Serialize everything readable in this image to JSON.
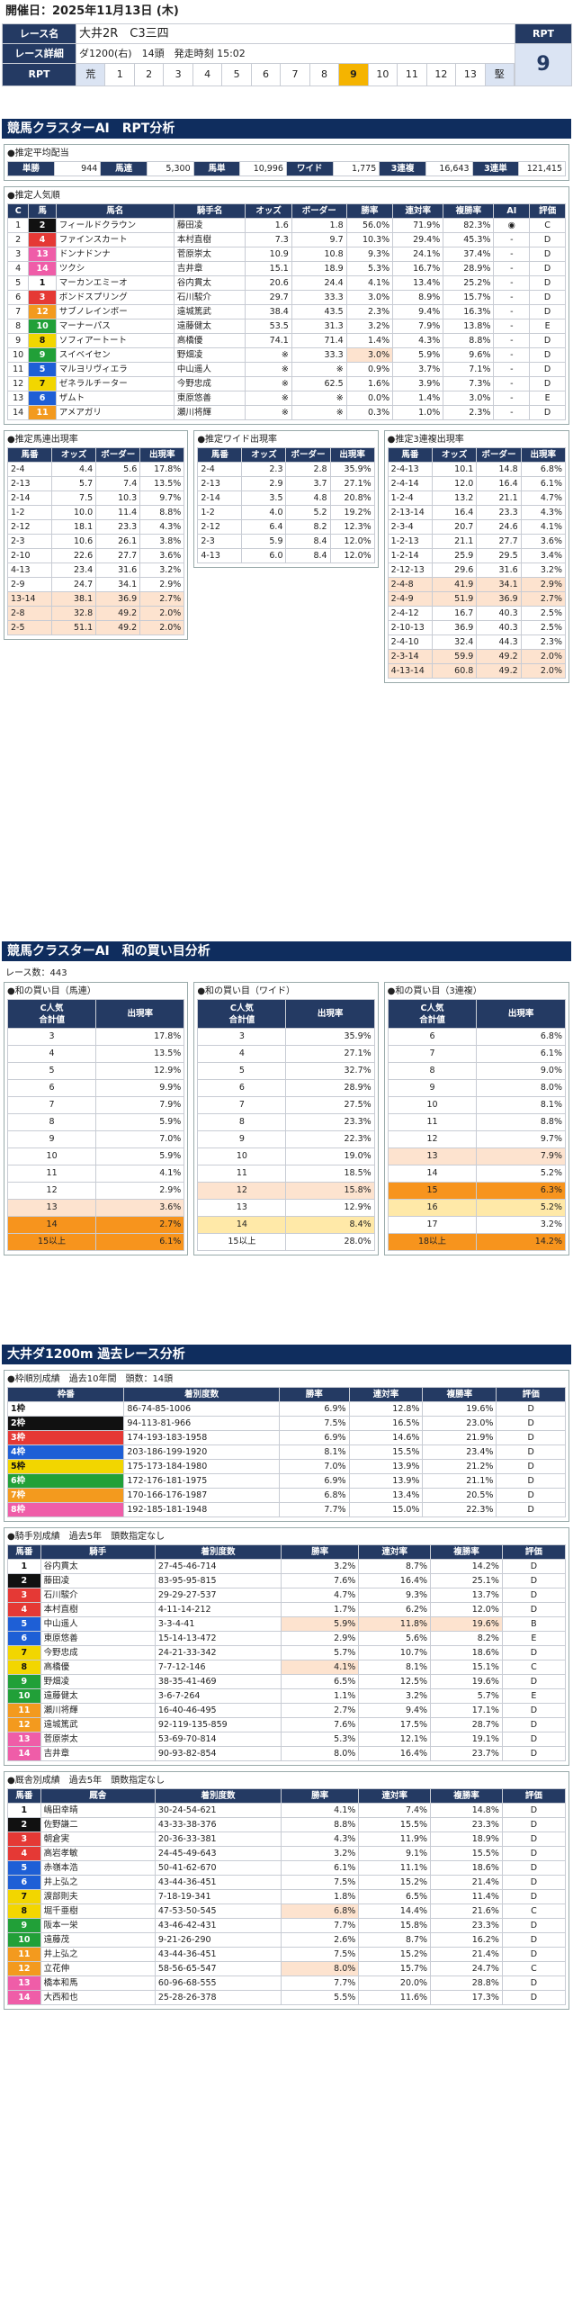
{
  "header": {
    "date_label": "開催日：",
    "date": "2025年11月13日 (木)",
    "race_name_label": "レース名",
    "race_name": "大井2R　C3三四",
    "rpt_label": "RPT",
    "rpt_value": "9",
    "detail_label": "レース詳細",
    "detail": "ダ1200(右)　14頭　発走時刻 15:02",
    "rpt_row_label": "RPT",
    "rpt_row_left": "荒",
    "rpt_row_right": "堅",
    "rpt_scale": [
      "1",
      "2",
      "3",
      "4",
      "5",
      "6",
      "7",
      "8",
      "9",
      "10",
      "11",
      "12",
      "13"
    ],
    "rpt_selected": "9"
  },
  "s1": {
    "title": "競馬クラスターAI　RPT分析",
    "payout": {
      "title": "●推定平均配当",
      "cells": [
        "単勝",
        "944",
        "馬連",
        "5,300",
        "馬単",
        "10,996",
        "ワイド",
        "1,775",
        "3連複",
        "16,643",
        "3連単",
        "121,415"
      ]
    },
    "pop": {
      "title": "●推定人気順",
      "headers": [
        "C",
        "馬",
        "馬名",
        "騎手名",
        "オッズ",
        "ボーダー",
        "勝率",
        "連対率",
        "複勝率",
        "AI",
        "評価"
      ],
      "rows": [
        [
          "1",
          "2",
          "フィールドクラウン",
          "藤田凌",
          "1.6",
          "1.8",
          "56.0%",
          "71.9%",
          "82.3%",
          "◉",
          "C"
        ],
        [
          "2",
          "4",
          "ファインスカート",
          "本村直樹",
          "7.3",
          "9.7",
          "10.3%",
          "29.4%",
          "45.3%",
          "-",
          "D"
        ],
        [
          "3",
          "13",
          "ドンナドンナ",
          "菅原崇太",
          "10.9",
          "10.8",
          "9.3%",
          "24.1%",
          "37.4%",
          "-",
          "D"
        ],
        [
          "4",
          "14",
          "ツクシ",
          "吉井章",
          "15.1",
          "18.9",
          "5.3%",
          "16.7%",
          "28.9%",
          "-",
          "D"
        ],
        [
          "5",
          "1",
          "マーカンエミーオ",
          "谷内貫太",
          "20.6",
          "24.4",
          "4.1%",
          "13.4%",
          "25.2%",
          "-",
          "D"
        ],
        [
          "6",
          "3",
          "ボンドスプリング",
          "石川駿介",
          "29.7",
          "33.3",
          "3.0%",
          "8.9%",
          "15.7%",
          "-",
          "D"
        ],
        [
          "7",
          "12",
          "サブノレインボー",
          "遠城篤武",
          "38.4",
          "43.5",
          "2.3%",
          "9.4%",
          "16.3%",
          "-",
          "D"
        ],
        [
          "8",
          "10",
          "マーナーパス",
          "遠藤健太",
          "53.5",
          "31.3",
          "3.2%",
          "7.9%",
          "13.8%",
          "-",
          "E"
        ],
        [
          "9",
          "8",
          "ソフィアートート",
          "高橋優",
          "74.1",
          "71.4",
          "1.4%",
          "4.3%",
          "8.8%",
          "-",
          "D"
        ],
        [
          "10",
          "9",
          "スイベイセン",
          "野畑凌",
          "※",
          "33.3",
          "3.0%",
          "5.9%",
          "9.6%",
          "-",
          "D"
        ],
        [
          "11",
          "5",
          "マルヨリヴィエラ",
          "中山遥人",
          "※",
          "※",
          "0.9%",
          "3.7%",
          "7.1%",
          "-",
          "D"
        ],
        [
          "12",
          "7",
          "ゼネラルチーター",
          "今野忠成",
          "※",
          "62.5",
          "1.6%",
          "3.9%",
          "7.3%",
          "-",
          "D"
        ],
        [
          "13",
          "6",
          "ザムト",
          "東原悠善",
          "※",
          "※",
          "0.0%",
          "1.4%",
          "3.0%",
          "-",
          "E"
        ],
        [
          "14",
          "11",
          "アメアガリ",
          "瀬川将輝",
          "※",
          "※",
          "0.3%",
          "1.0%",
          "2.3%",
          "-",
          "D"
        ]
      ]
    },
    "umaren": {
      "title": "●推定馬連出現率",
      "headers": [
        "馬番",
        "オッズ",
        "ボーダー",
        "出現率"
      ],
      "rows": [
        [
          "2-4",
          "4.4",
          "5.6",
          "17.8%"
        ],
        [
          "2-13",
          "5.7",
          "7.4",
          "13.5%"
        ],
        [
          "2-14",
          "7.5",
          "10.3",
          "9.7%"
        ],
        [
          "1-2",
          "10.0",
          "11.4",
          "8.8%"
        ],
        [
          "2-12",
          "18.1",
          "23.3",
          "4.3%"
        ],
        [
          "2-3",
          "10.6",
          "26.1",
          "3.8%"
        ],
        [
          "2-10",
          "22.6",
          "27.7",
          "3.6%"
        ],
        [
          "4-13",
          "23.4",
          "31.6",
          "3.2%"
        ],
        [
          "2-9",
          "24.7",
          "34.1",
          "2.9%"
        ],
        [
          "13-14",
          "38.1",
          "36.9",
          "2.7%"
        ],
        [
          "2-8",
          "32.8",
          "49.2",
          "2.0%"
        ],
        [
          "2-5",
          "51.1",
          "49.2",
          "2.0%"
        ]
      ]
    },
    "wide": {
      "title": "●推定ワイド出現率",
      "headers": [
        "馬番",
        "オッズ",
        "ボーダー",
        "出現率"
      ],
      "rows": [
        [
          "2-4",
          "2.3",
          "2.8",
          "35.9%"
        ],
        [
          "2-13",
          "2.9",
          "3.7",
          "27.1%"
        ],
        [
          "2-14",
          "3.5",
          "4.8",
          "20.8%"
        ],
        [
          "1-2",
          "4.0",
          "5.2",
          "19.2%"
        ],
        [
          "2-12",
          "6.4",
          "8.2",
          "12.3%"
        ],
        [
          "2-3",
          "5.9",
          "8.4",
          "12.0%"
        ],
        [
          "4-13",
          "6.0",
          "8.4",
          "12.0%"
        ]
      ]
    },
    "trio": {
      "title": "●推定3連複出現率",
      "headers": [
        "馬番",
        "オッズ",
        "ボーダー",
        "出現率"
      ],
      "rows": [
        [
          "2-4-13",
          "10.1",
          "14.8",
          "6.8%"
        ],
        [
          "2-4-14",
          "12.0",
          "16.4",
          "6.1%"
        ],
        [
          "1-2-4",
          "13.2",
          "21.1",
          "4.7%"
        ],
        [
          "2-13-14",
          "16.4",
          "23.3",
          "4.3%"
        ],
        [
          "2-3-4",
          "20.7",
          "24.6",
          "4.1%"
        ],
        [
          "1-2-13",
          "21.1",
          "27.7",
          "3.6%"
        ],
        [
          "1-2-14",
          "25.9",
          "29.5",
          "3.4%"
        ],
        [
          "2-12-13",
          "29.6",
          "31.6",
          "3.2%"
        ],
        [
          "2-4-8",
          "41.9",
          "34.1",
          "2.9%"
        ],
        [
          "2-4-9",
          "51.9",
          "36.9",
          "2.7%"
        ],
        [
          "2-4-12",
          "16.7",
          "40.3",
          "2.5%"
        ],
        [
          "2-10-13",
          "36.9",
          "40.3",
          "2.5%"
        ],
        [
          "2-4-10",
          "32.4",
          "44.3",
          "2.3%"
        ],
        [
          "2-3-14",
          "59.9",
          "49.2",
          "2.0%"
        ],
        [
          "4-13-14",
          "60.8",
          "49.2",
          "2.0%"
        ]
      ]
    }
  },
  "s2": {
    "title": "競馬クラスターAI　和の買い目分析",
    "count": "レース数：443",
    "t1": {
      "title": "●和の買い目（馬連）",
      "h1": "C人気\n合計値",
      "h2": "出現率",
      "rows": [
        [
          "3",
          "17.8%"
        ],
        [
          "4",
          "13.5%"
        ],
        [
          "5",
          "12.9%"
        ],
        [
          "6",
          "9.9%"
        ],
        [
          "7",
          "7.9%"
        ],
        [
          "8",
          "5.9%"
        ],
        [
          "9",
          "7.0%"
        ],
        [
          "10",
          "5.9%"
        ],
        [
          "11",
          "4.1%"
        ],
        [
          "12",
          "2.9%"
        ],
        [
          "13",
          "3.6%"
        ],
        [
          "14",
          "2.7%"
        ],
        [
          "15以上",
          "6.1%"
        ]
      ]
    },
    "t2": {
      "title": "●和の買い目（ワイド）",
      "h1": "C人気\n合計値",
      "h2": "出現率",
      "rows": [
        [
          "3",
          "35.9%"
        ],
        [
          "4",
          "27.1%"
        ],
        [
          "5",
          "32.7%"
        ],
        [
          "6",
          "28.9%"
        ],
        [
          "7",
          "27.5%"
        ],
        [
          "8",
          "23.3%"
        ],
        [
          "9",
          "22.3%"
        ],
        [
          "10",
          "19.0%"
        ],
        [
          "11",
          "18.5%"
        ],
        [
          "12",
          "15.8%"
        ],
        [
          "13",
          "12.9%"
        ],
        [
          "14",
          "8.4%"
        ],
        [
          "15以上",
          "28.0%"
        ]
      ]
    },
    "t3": {
      "title": "●和の買い目（3連複）",
      "h1": "C人気\n合計値",
      "h2": "出現率",
      "rows": [
        [
          "6",
          "6.8%"
        ],
        [
          "7",
          "6.1%"
        ],
        [
          "8",
          "9.0%"
        ],
        [
          "9",
          "8.0%"
        ],
        [
          "10",
          "8.1%"
        ],
        [
          "11",
          "8.8%"
        ],
        [
          "12",
          "9.7%"
        ],
        [
          "13",
          "7.9%"
        ],
        [
          "14",
          "5.2%"
        ],
        [
          "15",
          "6.3%"
        ],
        [
          "16",
          "5.2%"
        ],
        [
          "17",
          "3.2%"
        ],
        [
          "18以上",
          "14.2%"
        ]
      ]
    }
  },
  "s3": {
    "title": "大井ダ1200m 過去レース分析",
    "waku": {
      "title": "●枠順別成績　過去10年間　頭数：14頭",
      "headers": [
        "枠番",
        "着別度数",
        "勝率",
        "連対率",
        "複勝率",
        "評価"
      ],
      "rows": [
        [
          "1枠",
          "86-74-85-1006",
          "6.9%",
          "12.8%",
          "19.6%",
          "D"
        ],
        [
          "2枠",
          "94-113-81-966",
          "7.5%",
          "16.5%",
          "23.0%",
          "D"
        ],
        [
          "3枠",
          "174-193-183-1958",
          "6.9%",
          "14.6%",
          "21.9%",
          "D"
        ],
        [
          "4枠",
          "203-186-199-1920",
          "8.1%",
          "15.5%",
          "23.4%",
          "D"
        ],
        [
          "5枠",
          "175-173-184-1980",
          "7.0%",
          "13.9%",
          "21.2%",
          "D"
        ],
        [
          "6枠",
          "172-176-181-1975",
          "6.9%",
          "13.9%",
          "21.1%",
          "D"
        ],
        [
          "7枠",
          "170-166-176-1987",
          "6.8%",
          "13.4%",
          "20.5%",
          "D"
        ],
        [
          "8枠",
          "192-185-181-1948",
          "7.7%",
          "15.0%",
          "22.3%",
          "D"
        ]
      ]
    },
    "jockey": {
      "title": "●騎手別成績　過去5年　頭数指定なし",
      "headers": [
        "馬番",
        "騎手",
        "着別度数",
        "勝率",
        "連対率",
        "複勝率",
        "評価"
      ],
      "rows": [
        [
          "1",
          "谷内貫太",
          "27-45-46-714",
          "3.2%",
          "8.7%",
          "14.2%",
          "D"
        ],
        [
          "2",
          "藤田凌",
          "83-95-95-815",
          "7.6%",
          "16.4%",
          "25.1%",
          "D"
        ],
        [
          "3",
          "石川駿介",
          "29-29-27-537",
          "4.7%",
          "9.3%",
          "13.7%",
          "D"
        ],
        [
          "4",
          "本村直樹",
          "4-11-14-212",
          "1.7%",
          "6.2%",
          "12.0%",
          "D"
        ],
        [
          "5",
          "中山遥人",
          "3-3-4-41",
          "5.9%",
          "11.8%",
          "19.6%",
          "B"
        ],
        [
          "6",
          "東原悠善",
          "15-14-13-472",
          "2.9%",
          "5.6%",
          "8.2%",
          "E"
        ],
        [
          "7",
          "今野忠成",
          "24-21-33-342",
          "5.7%",
          "10.7%",
          "18.6%",
          "D"
        ],
        [
          "8",
          "高橋優",
          "7-7-12-146",
          "4.1%",
          "8.1%",
          "15.1%",
          "C"
        ],
        [
          "9",
          "野畑凌",
          "38-35-41-469",
          "6.5%",
          "12.5%",
          "19.6%",
          "D"
        ],
        [
          "10",
          "遠藤健太",
          "3-6-7-264",
          "1.1%",
          "3.2%",
          "5.7%",
          "E"
        ],
        [
          "11",
          "瀬川将輝",
          "16-40-46-495",
          "2.7%",
          "9.4%",
          "17.1%",
          "D"
        ],
        [
          "12",
          "遠城篤武",
          "92-119-135-859",
          "7.6%",
          "17.5%",
          "28.7%",
          "D"
        ],
        [
          "13",
          "菅原崇太",
          "53-69-70-814",
          "5.3%",
          "12.1%",
          "19.1%",
          "D"
        ],
        [
          "14",
          "吉井章",
          "90-93-82-854",
          "8.0%",
          "16.4%",
          "23.7%",
          "D"
        ]
      ]
    },
    "trainer": {
      "title": "●厩舎別成績　過去5年　頭数指定なし",
      "headers": [
        "馬番",
        "厩舎",
        "着別度数",
        "勝率",
        "連対率",
        "複勝率",
        "評価"
      ],
      "rows": [
        [
          "1",
          "嶋田幸晴",
          "30-24-54-621",
          "4.1%",
          "7.4%",
          "14.8%",
          "D"
        ],
        [
          "2",
          "佐野謙二",
          "43-33-38-376",
          "8.8%",
          "15.5%",
          "23.3%",
          "D"
        ],
        [
          "3",
          "朝倉実",
          "20-36-33-381",
          "4.3%",
          "11.9%",
          "18.9%",
          "D"
        ],
        [
          "4",
          "高岩孝敏",
          "24-45-49-643",
          "3.2%",
          "9.1%",
          "15.5%",
          "D"
        ],
        [
          "5",
          "赤嶺本浩",
          "50-41-62-670",
          "6.1%",
          "11.1%",
          "18.6%",
          "D"
        ],
        [
          "6",
          "井上弘之",
          "43-44-36-451",
          "7.5%",
          "15.2%",
          "21.4%",
          "D"
        ],
        [
          "7",
          "渡部則夫",
          "7-18-19-341",
          "1.8%",
          "6.5%",
          "11.4%",
          "D"
        ],
        [
          "8",
          "堀千亜樹",
          "47-53-50-545",
          "6.8%",
          "14.4%",
          "21.6%",
          "C"
        ],
        [
          "9",
          "阪本一栄",
          "43-46-42-431",
          "7.7%",
          "15.8%",
          "23.3%",
          "D"
        ],
        [
          "10",
          "遠藤茂",
          "9-21-26-290",
          "2.6%",
          "8.7%",
          "16.2%",
          "D"
        ],
        [
          "11",
          "井上弘之",
          "43-44-36-451",
          "7.5%",
          "15.2%",
          "21.4%",
          "D"
        ],
        [
          "12",
          "立花伸",
          "58-56-65-547",
          "8.0%",
          "15.7%",
          "24.7%",
          "C"
        ],
        [
          "13",
          "橋本和馬",
          "60-96-68-555",
          "7.7%",
          "20.0%",
          "28.8%",
          "D"
        ],
        [
          "14",
          "大西和也",
          "25-28-26-378",
          "5.5%",
          "11.6%",
          "17.3%",
          "D"
        ]
      ]
    }
  },
  "colors": {
    "navy": "#0f2d5e",
    "thead": "#243a63",
    "orange": "#f7941d",
    "pale_orange": "#fde3cf",
    "gold": "#f5b400"
  },
  "frame_colors": [
    "#ffffff",
    "#111111",
    "#e53935",
    "#1e5fd6",
    "#f2d600",
    "#21a038",
    "#f39a1e",
    "#ef5da8"
  ]
}
